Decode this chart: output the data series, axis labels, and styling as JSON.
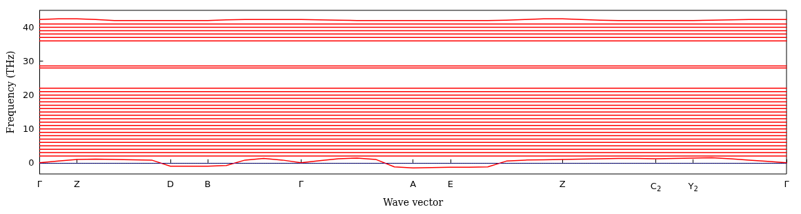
{
  "chart_data": {
    "type": "line",
    "xlabel": "Wave vector",
    "ylabel": "Frequency (THz)",
    "ylim": [
      -3.3,
      45
    ],
    "categories": [
      "Γ",
      null,
      "Z",
      null,
      null,
      null,
      null,
      "D",
      null,
      "B",
      null,
      null,
      null,
      null,
      "Γ",
      null,
      null,
      null,
      null,
      null,
      "A",
      null,
      "E",
      null,
      null,
      null,
      null,
      null,
      "Z",
      null,
      null,
      null,
      null,
      "C$_{2}$",
      null,
      "Y$_{2}$",
      null,
      null,
      null,
      null,
      "Γ"
    ],
    "yticks": [
      0,
      10,
      20,
      30,
      40
    ],
    "grid": false,
    "marker": "none",
    "line_style": "solid",
    "ref_lines": [
      {
        "axis": "y",
        "value": 0,
        "color": "#0000ff",
        "line_style": "dotted"
      }
    ],
    "series": [
      {
        "color": "#ff0000",
        "values": [
          0,
          0.5,
          1,
          1.1,
          1,
          0.9,
          0.8,
          -1,
          -1,
          -1,
          -0.8,
          0.8,
          1.3,
          0.8,
          0,
          0.6,
          1.2,
          1.4,
          1,
          -1.2,
          -1.5,
          -1.4,
          -1.3,
          -1.3,
          -1.2,
          0.5,
          0.8,
          0.9,
          1,
          1.1,
          1.2,
          1.3,
          1.3,
          1.2,
          1.3,
          1.4,
          1.5,
          1.2,
          0.8,
          0.4,
          0
        ]
      },
      {
        "color": "#ff0000",
        "values": [
          2,
          2,
          2,
          2,
          2,
          2,
          2,
          2,
          2,
          2,
          2,
          2,
          2,
          2,
          2,
          2,
          2,
          2,
          2,
          2,
          2,
          2,
          2,
          2,
          2,
          2,
          2,
          2,
          2,
          2,
          2,
          2,
          2,
          2,
          2,
          2,
          2,
          2,
          2,
          2,
          2
        ]
      },
      {
        "color": "#ff0000",
        "values": [
          3,
          3,
          3,
          3,
          3,
          3,
          3,
          3,
          3,
          3,
          3,
          3,
          3,
          3,
          3,
          3,
          3,
          3,
          3,
          3,
          3,
          3,
          3,
          3,
          3,
          3,
          3,
          3,
          3,
          3,
          3,
          3,
          3,
          3,
          3,
          3,
          3,
          3,
          3,
          3,
          3
        ]
      },
      {
        "color": "#ff0000",
        "values": [
          4,
          4,
          4,
          4,
          4,
          4,
          4,
          4,
          4,
          4,
          4,
          4,
          4,
          4,
          4,
          4,
          4,
          4,
          4,
          4,
          4,
          4,
          4,
          4,
          4,
          4,
          4,
          4,
          4,
          4,
          4,
          4,
          4,
          4,
          4,
          4,
          4,
          4,
          4,
          4,
          4
        ]
      },
      {
        "color": "#ff0000",
        "values": [
          5,
          5,
          5,
          5,
          5,
          5,
          5,
          5,
          5,
          5,
          5,
          5,
          5,
          5,
          5,
          5,
          5,
          5,
          5,
          5,
          5,
          5,
          5,
          5,
          5,
          5,
          5,
          5,
          5,
          5,
          5,
          5,
          5,
          5,
          5,
          5,
          5,
          5,
          5,
          5,
          5
        ]
      },
      {
        "color": "#ff0000",
        "values": [
          6,
          6,
          6,
          6,
          6,
          6,
          6,
          6,
          6,
          6,
          6,
          6,
          6,
          6,
          6,
          6,
          6,
          6,
          6,
          6,
          6,
          6,
          6,
          6,
          6,
          6,
          6,
          6,
          6,
          6,
          6,
          6,
          6,
          6,
          6,
          6,
          6,
          6,
          6,
          6,
          6
        ]
      },
      {
        "color": "#ff0000",
        "values": [
          7,
          7,
          7,
          7,
          7,
          7,
          7,
          7,
          7,
          7,
          7,
          7,
          7,
          7,
          7,
          7,
          7,
          7,
          7,
          7,
          7,
          7,
          7,
          7,
          7,
          7,
          7,
          7,
          7,
          7,
          7,
          7,
          7,
          7,
          7,
          7,
          7,
          7,
          7,
          7,
          7
        ]
      },
      {
        "color": "#ff0000",
        "values": [
          8,
          8,
          8,
          8,
          8,
          8,
          8,
          8,
          8,
          8,
          8,
          8,
          8,
          8,
          8,
          8,
          8,
          8,
          8,
          8,
          8,
          8,
          8,
          8,
          8,
          8,
          8,
          8,
          8,
          8,
          8,
          8,
          8,
          8,
          8,
          8,
          8,
          8,
          8,
          8,
          8
        ]
      },
      {
        "color": "#ff0000",
        "values": [
          9,
          9,
          9,
          9,
          9,
          9,
          9,
          9,
          9,
          9,
          9,
          9,
          9,
          9,
          9,
          9,
          9,
          9,
          9,
          9,
          9,
          9,
          9,
          9,
          9,
          9,
          9,
          9,
          9,
          9,
          9,
          9,
          9,
          9,
          9,
          9,
          9,
          9,
          9,
          9,
          9
        ]
      },
      {
        "color": "#ff0000",
        "values": [
          10,
          10,
          10,
          10,
          10,
          10,
          10,
          10,
          10,
          10,
          10,
          10,
          10,
          10,
          10,
          10,
          10,
          10,
          10,
          10,
          10,
          10,
          10,
          10,
          10,
          10,
          10,
          10,
          10,
          10,
          10,
          10,
          10,
          10,
          10,
          10,
          10,
          10,
          10,
          10,
          10
        ]
      },
      {
        "color": "#ff0000",
        "values": [
          11,
          11,
          11,
          11,
          11,
          11,
          11,
          11,
          11,
          11,
          11,
          11,
          11,
          11,
          11,
          11,
          11,
          11,
          11,
          11,
          11,
          11,
          11,
          11,
          11,
          11,
          11,
          11,
          11,
          11,
          11,
          11,
          11,
          11,
          11,
          11,
          11,
          11,
          11,
          11,
          11
        ]
      },
      {
        "color": "#ff0000",
        "values": [
          12,
          12,
          12,
          12,
          12,
          12,
          12,
          12,
          12,
          12,
          12,
          12,
          12,
          12,
          12,
          12,
          12,
          12,
          12,
          12,
          12,
          12,
          12,
          12,
          12,
          12,
          12,
          12,
          12,
          12,
          12,
          12,
          12,
          12,
          12,
          12,
          12,
          12,
          12,
          12,
          12
        ]
      },
      {
        "color": "#ff0000",
        "values": [
          13,
          13,
          13,
          13,
          13,
          13,
          13,
          13,
          13,
          13,
          13,
          13,
          13,
          13,
          13,
          13,
          13,
          13,
          13,
          13,
          13,
          13,
          13,
          13,
          13,
          13,
          13,
          13,
          13,
          13,
          13,
          13,
          13,
          13,
          13,
          13,
          13,
          13,
          13,
          13,
          13
        ]
      },
      {
        "color": "#ff0000",
        "values": [
          14,
          14,
          14,
          14,
          14,
          14,
          14,
          14,
          14,
          14,
          14,
          14,
          14,
          14,
          14,
          14,
          14,
          14,
          14,
          14,
          14,
          14,
          14,
          14,
          14,
          14,
          14,
          14,
          14,
          14,
          14,
          14,
          14,
          14,
          14,
          14,
          14,
          14,
          14,
          14,
          14
        ]
      },
      {
        "color": "#ff0000",
        "values": [
          15,
          15,
          15,
          15,
          15,
          15,
          15,
          15,
          15,
          15,
          15,
          15,
          15,
          15,
          15,
          15,
          15,
          15,
          15,
          15,
          15,
          15,
          15,
          15,
          15,
          15,
          15,
          15,
          15,
          15,
          15,
          15,
          15,
          15,
          15,
          15,
          15,
          15,
          15,
          15,
          15
        ]
      },
      {
        "color": "#ff0000",
        "values": [
          16,
          16,
          16,
          16,
          16,
          16,
          16,
          16,
          16,
          16,
          16,
          16,
          16,
          16,
          16,
          16,
          16,
          16,
          16,
          16,
          16,
          16,
          16,
          16,
          16,
          16,
          16,
          16,
          16,
          16,
          16,
          16,
          16,
          16,
          16,
          16,
          16,
          16,
          16,
          16,
          16
        ]
      },
      {
        "color": "#ff0000",
        "values": [
          17,
          17,
          17,
          17,
          17,
          17,
          17,
          17,
          17,
          17,
          17,
          17,
          17,
          17,
          17,
          17,
          17,
          17,
          17,
          17,
          17,
          17,
          17,
          17,
          17,
          17,
          17,
          17,
          17,
          17,
          17,
          17,
          17,
          17,
          17,
          17,
          17,
          17,
          17,
          17,
          17
        ]
      },
      {
        "color": "#ff0000",
        "values": [
          18,
          18,
          18,
          18,
          18,
          18,
          18,
          18,
          18,
          18,
          18,
          18,
          18,
          18,
          18,
          18,
          18,
          18,
          18,
          18,
          18,
          18,
          18,
          18,
          18,
          18,
          18,
          18,
          18,
          18,
          18,
          18,
          18,
          18,
          18,
          18,
          18,
          18,
          18,
          18,
          18
        ]
      },
      {
        "color": "#ff0000",
        "values": [
          19,
          19,
          19,
          19,
          19,
          19,
          19,
          19,
          19,
          19,
          19,
          19,
          19,
          19,
          19,
          19,
          19,
          19,
          19,
          19,
          19,
          19,
          19,
          19,
          19,
          19,
          19,
          19,
          19,
          19,
          19,
          19,
          19,
          19,
          19,
          19,
          19,
          19,
          19,
          19,
          19
        ]
      },
      {
        "color": "#ff0000",
        "values": [
          20,
          20,
          20,
          20,
          20,
          20,
          20,
          20,
          20,
          20,
          20,
          20,
          20,
          20,
          20,
          20,
          20,
          20,
          20,
          20,
          20,
          20,
          20,
          20,
          20,
          20,
          20,
          20,
          20,
          20,
          20,
          20,
          20,
          20,
          20,
          20,
          20,
          20,
          20,
          20,
          20
        ]
      },
      {
        "color": "#ff0000",
        "values": [
          21,
          21,
          21,
          21,
          21,
          21,
          21,
          21,
          21,
          21,
          21,
          21,
          21,
          21,
          21,
          21,
          21,
          21,
          21,
          21,
          21,
          21,
          21,
          21,
          21,
          21,
          21,
          21,
          21,
          21,
          21,
          21,
          21,
          21,
          21,
          21,
          21,
          21,
          21,
          21,
          21
        ]
      },
      {
        "color": "#ff0000",
        "values": [
          22,
          22,
          22,
          22,
          22,
          22,
          22,
          22,
          22,
          22,
          22,
          22,
          22,
          22,
          22,
          22,
          22,
          22,
          22,
          22,
          22,
          22,
          22,
          22,
          22,
          22,
          22,
          22,
          22,
          22,
          22,
          22,
          22,
          22,
          22,
          22,
          22,
          22,
          22,
          22,
          22
        ]
      },
      {
        "color": "#ff0000",
        "values": [
          28,
          28,
          28,
          28,
          28,
          28,
          28,
          28,
          28,
          28,
          28,
          28,
          28,
          28,
          28,
          28,
          28,
          28,
          28,
          28,
          28,
          28,
          28,
          28,
          28,
          28,
          28,
          28,
          28,
          28,
          28,
          28,
          28,
          28,
          28,
          28,
          28,
          28,
          28,
          28,
          28
        ]
      },
      {
        "color": "#ff0000",
        "values": [
          28.6,
          28.6,
          28.6,
          28.6,
          28.6,
          28.6,
          28.6,
          28.6,
          28.6,
          28.6,
          28.6,
          28.6,
          28.6,
          28.6,
          28.6,
          28.6,
          28.6,
          28.6,
          28.6,
          28.6,
          28.6,
          28.6,
          28.6,
          28.6,
          28.6,
          28.6,
          28.6,
          28.6,
          28.6,
          28.6,
          28.6,
          28.6,
          28.6,
          28.6,
          28.6,
          28.6,
          28.6,
          28.6,
          28.6,
          28.6,
          28.6
        ]
      },
      {
        "color": "#ff0000",
        "values": [
          36,
          36,
          36,
          36,
          36,
          36,
          36,
          36,
          36,
          36,
          36,
          36,
          36,
          36,
          36,
          36,
          36,
          36,
          36,
          36,
          36,
          36,
          36,
          36,
          36,
          36,
          36,
          36,
          36,
          36,
          36,
          36,
          36,
          36,
          36,
          36,
          36,
          36,
          36,
          36,
          36
        ]
      },
      {
        "color": "#ff0000",
        "values": [
          37,
          37,
          37,
          37,
          37,
          37,
          37,
          37,
          37,
          37,
          37,
          37,
          37,
          37,
          37,
          37,
          37,
          37,
          37,
          37,
          37,
          37,
          37,
          37,
          37,
          37,
          37,
          37,
          37,
          37,
          37,
          37,
          37,
          37,
          37,
          37,
          37,
          37,
          37,
          37,
          37
        ]
      },
      {
        "color": "#ff0000",
        "values": [
          38,
          38,
          38,
          38,
          38,
          38,
          38,
          38,
          38,
          38,
          38,
          38,
          38,
          38,
          38,
          38,
          38,
          38,
          38,
          38,
          38,
          38,
          38,
          38,
          38,
          38,
          38,
          38,
          38,
          38,
          38,
          38,
          38,
          38,
          38,
          38,
          38,
          38,
          38,
          38,
          38
        ]
      },
      {
        "color": "#ff0000",
        "values": [
          39,
          39,
          39,
          39,
          39,
          39,
          39,
          39,
          39,
          39,
          39,
          39,
          39,
          39,
          39,
          39,
          39,
          39,
          39,
          39,
          39,
          39,
          39,
          39,
          39,
          39,
          39,
          39,
          39,
          39,
          39,
          39,
          39,
          39,
          39,
          39,
          39,
          39,
          39,
          39,
          39
        ]
      },
      {
        "color": "#ff0000",
        "values": [
          40,
          40,
          40,
          40,
          40,
          40,
          40,
          40,
          40,
          40,
          40,
          40,
          40,
          40,
          40,
          40,
          40,
          40,
          40,
          40,
          40,
          40,
          40,
          40,
          40,
          40,
          40,
          40,
          40,
          40,
          40,
          40,
          40,
          40,
          40,
          40,
          40,
          40,
          40,
          40,
          40
        ]
      },
      {
        "color": "#ff0000",
        "values": [
          41,
          41,
          41,
          41,
          41,
          41,
          41,
          41,
          41,
          41,
          41,
          41,
          41,
          41,
          41,
          41,
          41,
          41,
          41,
          41,
          41,
          41,
          41,
          41,
          41,
          41,
          41,
          41,
          41,
          41,
          41,
          41,
          41,
          41,
          41,
          41,
          41,
          41,
          41,
          41,
          41
        ]
      },
      {
        "color": "#ff0000",
        "values": [
          42.3,
          42.5,
          42.5,
          42.3,
          42,
          42,
          42,
          42,
          42,
          42,
          42.2,
          42.3,
          42.3,
          42.3,
          42.3,
          42.2,
          42.1,
          42,
          42,
          42,
          42,
          42,
          42,
          42,
          42,
          42.1,
          42.3,
          42.5,
          42.5,
          42.3,
          42.1,
          42,
          42,
          42,
          42,
          42,
          42.1,
          42.2,
          42.3,
          42.3,
          42.3
        ]
      }
    ]
  }
}
